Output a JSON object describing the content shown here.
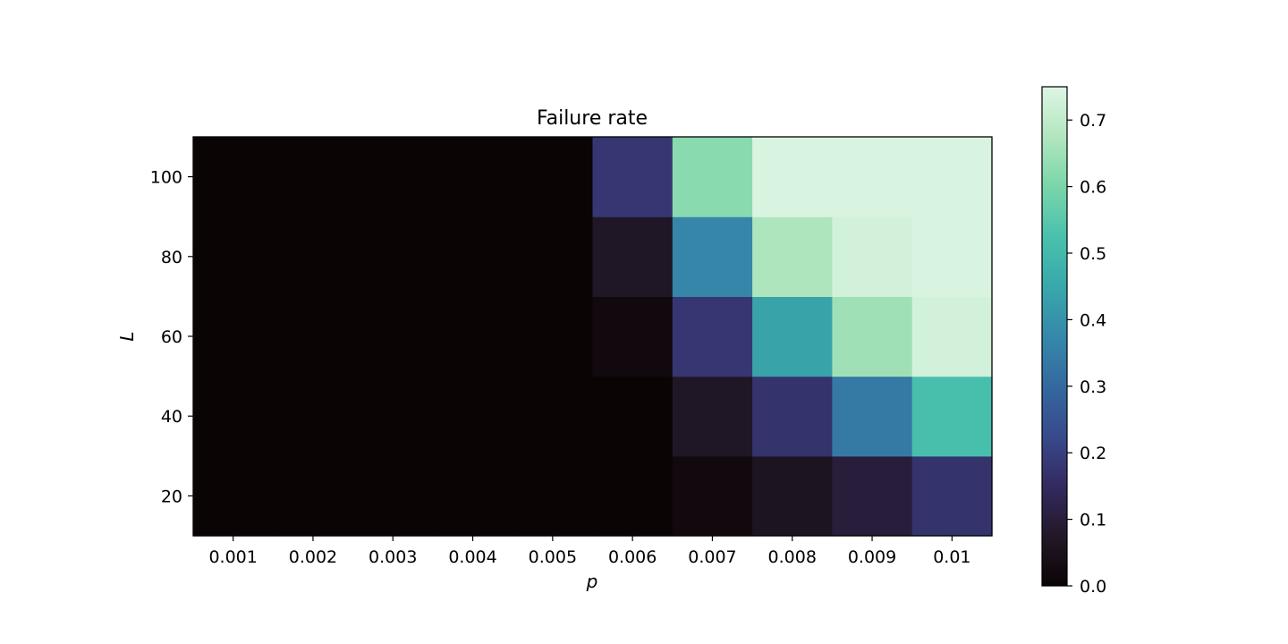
{
  "chart_data": {
    "type": "heatmap",
    "title": "Failure rate",
    "xlabel": "p",
    "ylabel": "L",
    "x": [
      "0.001",
      "0.002",
      "0.003",
      "0.004",
      "0.005",
      "0.006",
      "0.007",
      "0.008",
      "0.009",
      "0.01"
    ],
    "y": [
      20,
      40,
      60,
      80,
      100
    ],
    "z": [
      [
        0.0,
        0.0,
        0.0,
        0.0,
        0.0,
        0.0,
        0.02,
        0.06,
        0.1,
        0.17
      ],
      [
        0.0,
        0.0,
        0.0,
        0.0,
        0.0,
        0.0,
        0.07,
        0.17,
        0.34,
        0.52
      ],
      [
        0.0,
        0.0,
        0.0,
        0.0,
        0.0,
        0.02,
        0.18,
        0.44,
        0.65,
        0.73
      ],
      [
        0.0,
        0.0,
        0.0,
        0.0,
        0.0,
        0.07,
        0.37,
        0.67,
        0.73,
        0.74
      ],
      [
        0.0,
        0.0,
        0.0,
        0.0,
        0.0,
        0.18,
        0.62,
        0.74,
        0.74,
        0.74
      ]
    ],
    "yticks": [
      20,
      40,
      60,
      80,
      100
    ],
    "colorbar": {
      "range": [
        0.0,
        0.75
      ],
      "ticks": [
        "0.0",
        "0.1",
        "0.2",
        "0.3",
        "0.4",
        "0.5",
        "0.6",
        "0.7"
      ],
      "colormap": "mako"
    },
    "grid": false
  }
}
